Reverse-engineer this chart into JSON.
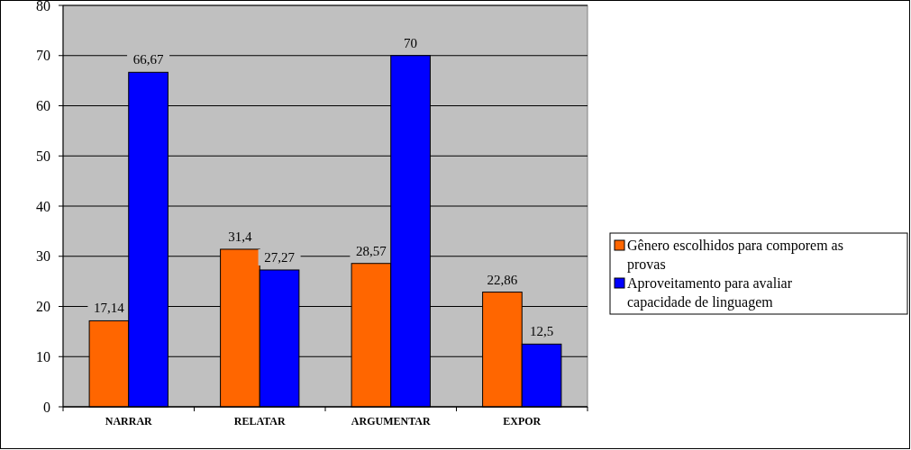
{
  "chart_data": {
    "type": "bar",
    "categories": [
      "NARRAR",
      "RELATAR",
      "ARGUMENTAR",
      "EXPOR"
    ],
    "series": [
      {
        "name": "Gênero escolhidos para comporem as provas",
        "color": "#ff6600",
        "values": [
          17.14,
          31.4,
          28.57,
          22.86
        ],
        "value_labels": [
          "17,14",
          "31,4",
          "28,57",
          "22,86"
        ]
      },
      {
        "name": "Aproveitamento para avaliar capacidade de linguagem",
        "color": "#0000ff",
        "values": [
          66.67,
          27.27,
          70,
          12.5
        ],
        "value_labels": [
          "66,67",
          "27,27",
          "70",
          "12,5"
        ]
      }
    ],
    "ylim": [
      0,
      80
    ],
    "yticks": [
      0,
      10,
      20,
      30,
      40,
      50,
      60,
      70,
      80
    ],
    "grid": "y",
    "legend": "right"
  }
}
